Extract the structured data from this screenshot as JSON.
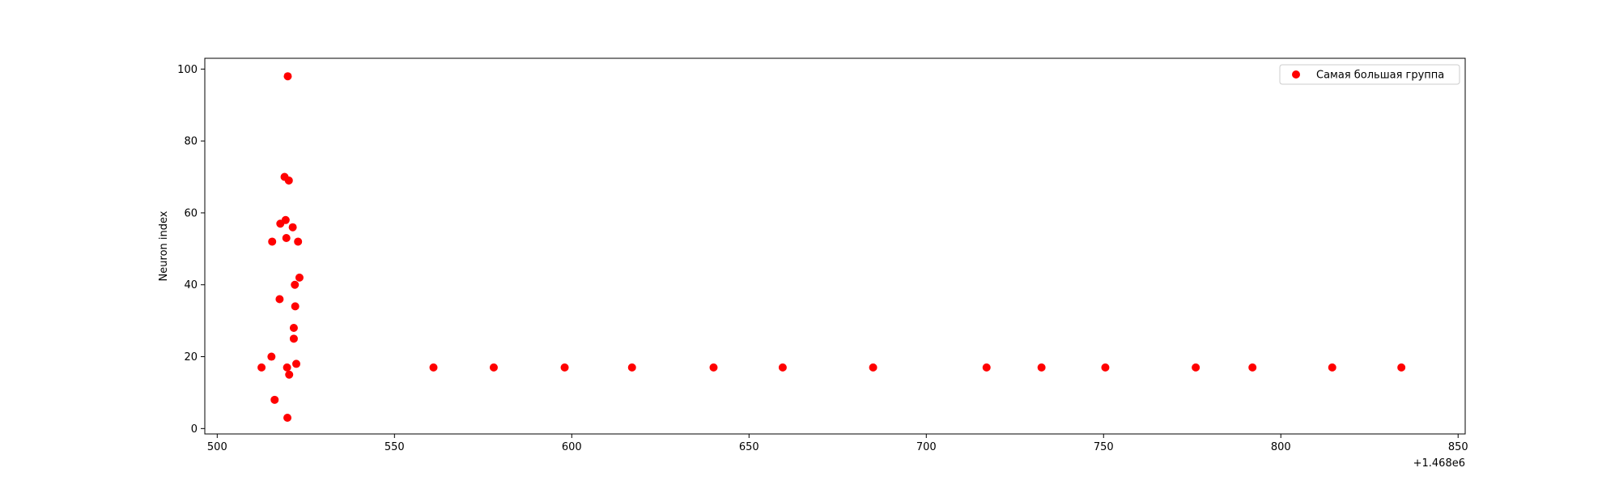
{
  "chart_data": {
    "type": "scatter",
    "title": "",
    "xlabel": "",
    "ylabel": "Neuron index",
    "x_offset_text": "+1.468e6",
    "xlim": [
      1468496.5,
      1468852
    ],
    "ylim": [
      -1.5,
      103
    ],
    "x_ticks": [
      500,
      550,
      600,
      650,
      700,
      750,
      800,
      850
    ],
    "y_ticks": [
      0,
      20,
      40,
      60,
      80,
      100
    ],
    "x_tick_offset": 1468000,
    "grid": false,
    "legend_placement": "top-right",
    "series": [
      {
        "name": "Самая большая группа",
        "color": "#ff0000",
        "marker": "circle",
        "points": [
          {
            "x": 1468512.5,
            "y": 17
          },
          {
            "x": 1468515.3,
            "y": 20
          },
          {
            "x": 1468515.5,
            "y": 52
          },
          {
            "x": 1468516.2,
            "y": 8
          },
          {
            "x": 1468517.6,
            "y": 36
          },
          {
            "x": 1468517.8,
            "y": 57
          },
          {
            "x": 1468519.0,
            "y": 70
          },
          {
            "x": 1468519.3,
            "y": 58
          },
          {
            "x": 1468519.5,
            "y": 53
          },
          {
            "x": 1468519.7,
            "y": 17
          },
          {
            "x": 1468519.8,
            "y": 3
          },
          {
            "x": 1468519.9,
            "y": 98
          },
          {
            "x": 1468520.2,
            "y": 69
          },
          {
            "x": 1468520.3,
            "y": 15
          },
          {
            "x": 1468521.3,
            "y": 56
          },
          {
            "x": 1468521.6,
            "y": 28
          },
          {
            "x": 1468521.6,
            "y": 25
          },
          {
            "x": 1468521.9,
            "y": 40
          },
          {
            "x": 1468522.0,
            "y": 34
          },
          {
            "x": 1468522.3,
            "y": 18
          },
          {
            "x": 1468522.8,
            "y": 52
          },
          {
            "x": 1468523.2,
            "y": 42
          },
          {
            "x": 1468561.0,
            "y": 17
          },
          {
            "x": 1468578.0,
            "y": 17
          },
          {
            "x": 1468598.0,
            "y": 17
          },
          {
            "x": 1468617.0,
            "y": 17
          },
          {
            "x": 1468640.0,
            "y": 17
          },
          {
            "x": 1468659.5,
            "y": 17
          },
          {
            "x": 1468685.0,
            "y": 17
          },
          {
            "x": 1468717.0,
            "y": 17
          },
          {
            "x": 1468732.5,
            "y": 17
          },
          {
            "x": 1468750.5,
            "y": 17
          },
          {
            "x": 1468776.0,
            "y": 17
          },
          {
            "x": 1468792.0,
            "y": 17
          },
          {
            "x": 1468814.5,
            "y": 17
          },
          {
            "x": 1468834.0,
            "y": 17
          }
        ]
      }
    ]
  }
}
